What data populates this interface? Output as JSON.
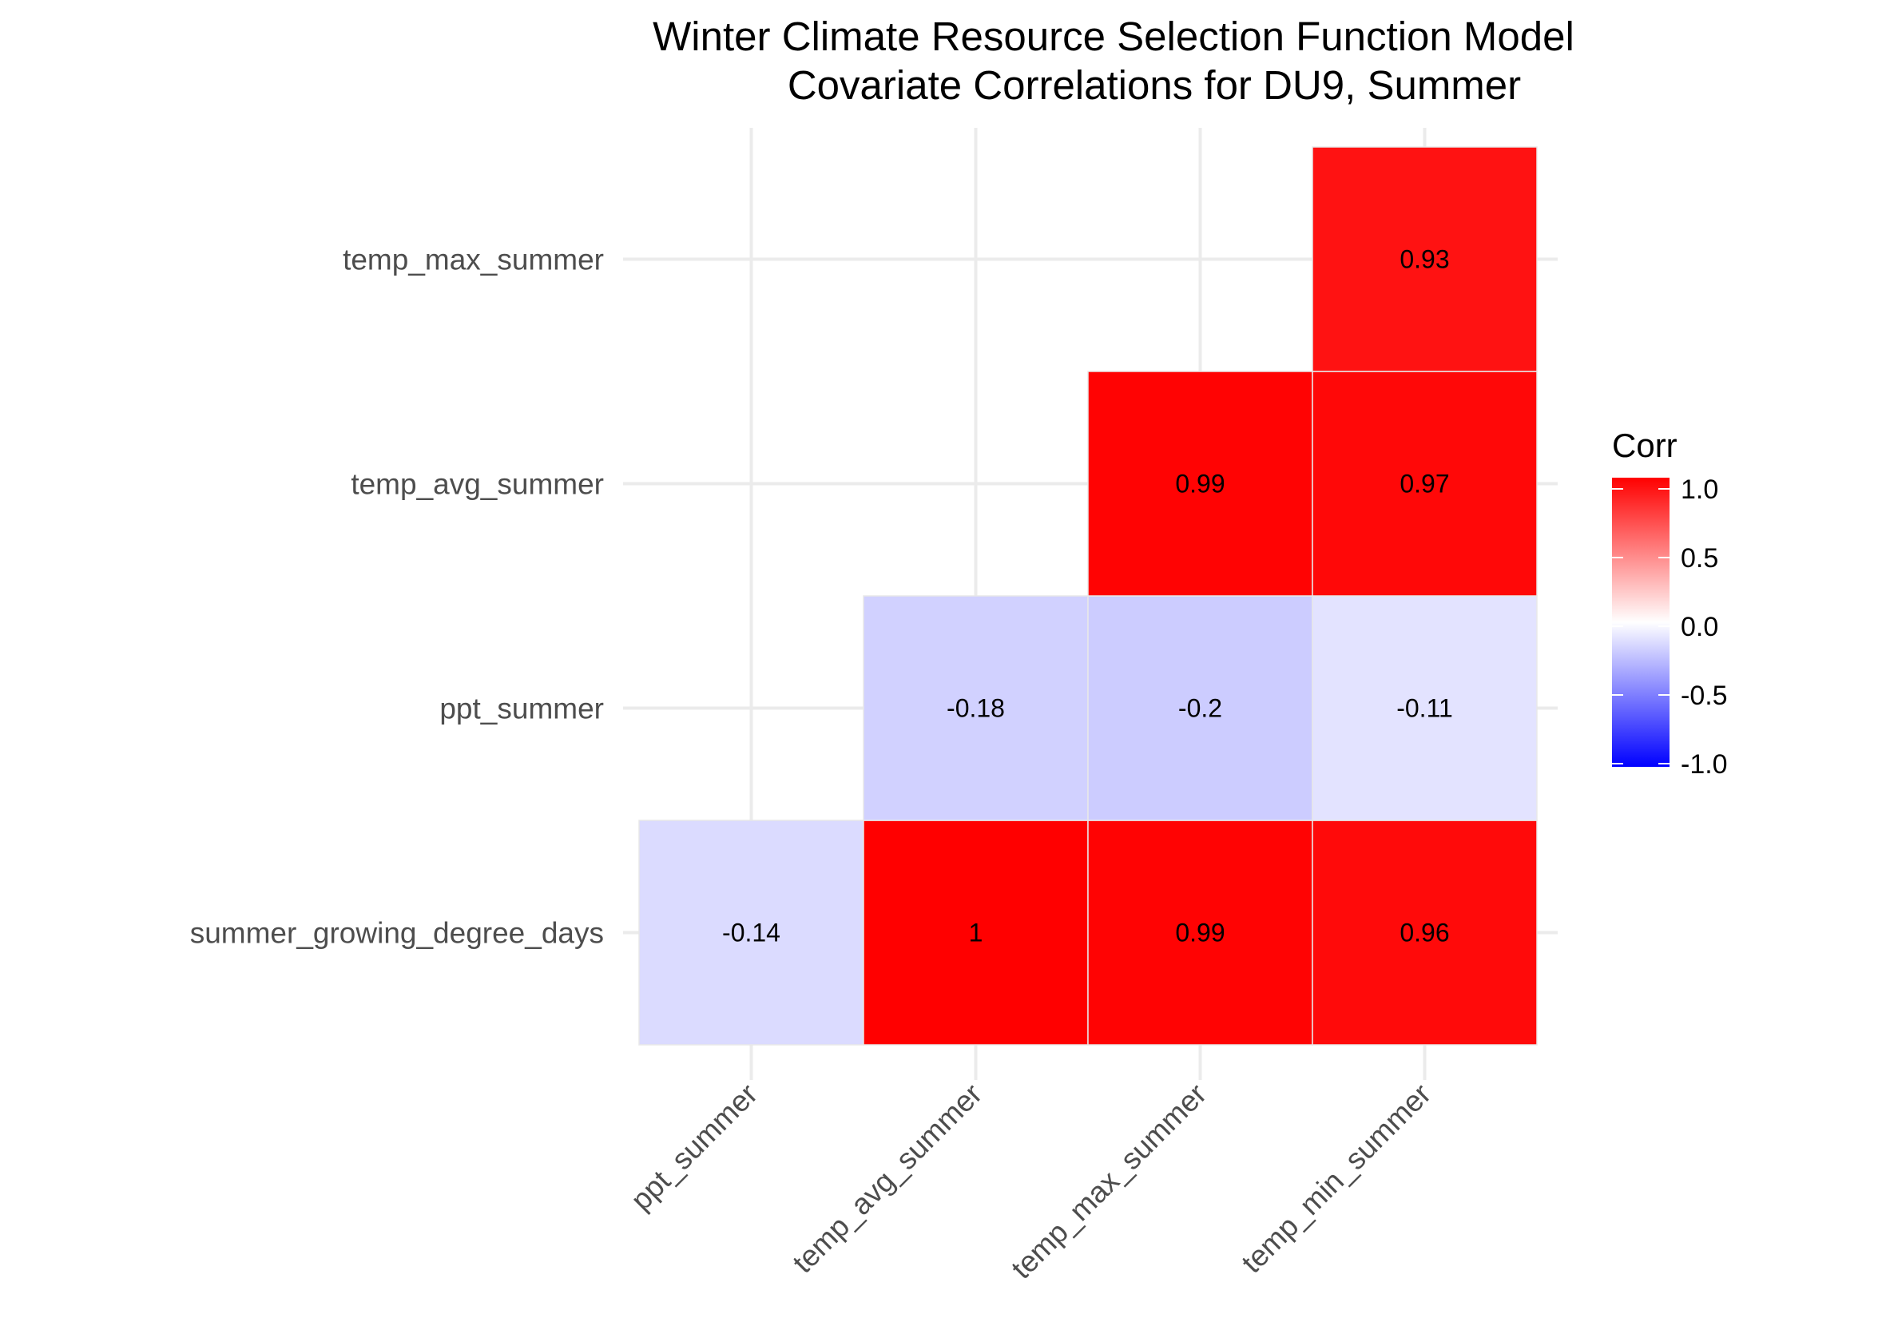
{
  "chart_data": {
    "type": "heatmap",
    "title": "Winter Climate Resource Selection Function Model",
    "subtitle": "Covariate Correlations for DU9, Summer",
    "x_categories": [
      "ppt_summer",
      "temp_avg_summer",
      "temp_max_summer",
      "temp_min_summer"
    ],
    "y_categories": [
      "summer_growing_degree_days",
      "ppt_summer",
      "temp_avg_summer",
      "temp_max_summer"
    ],
    "cells": [
      {
        "x": "ppt_summer",
        "y": "summer_growing_degree_days",
        "value": -0.14,
        "label": "-0.14"
      },
      {
        "x": "temp_avg_summer",
        "y": "summer_growing_degree_days",
        "value": 1.0,
        "label": "1"
      },
      {
        "x": "temp_max_summer",
        "y": "summer_growing_degree_days",
        "value": 0.99,
        "label": "0.99"
      },
      {
        "x": "temp_min_summer",
        "y": "summer_growing_degree_days",
        "value": 0.96,
        "label": "0.96"
      },
      {
        "x": "temp_avg_summer",
        "y": "ppt_summer",
        "value": -0.18,
        "label": "-0.18"
      },
      {
        "x": "temp_max_summer",
        "y": "ppt_summer",
        "value": -0.2,
        "label": "-0.2"
      },
      {
        "x": "temp_min_summer",
        "y": "ppt_summer",
        "value": -0.11,
        "label": "-0.11"
      },
      {
        "x": "temp_max_summer",
        "y": "temp_avg_summer",
        "value": 0.99,
        "label": "0.99"
      },
      {
        "x": "temp_min_summer",
        "y": "temp_avg_summer",
        "value": 0.97,
        "label": "0.97"
      },
      {
        "x": "temp_min_summer",
        "y": "temp_max_summer",
        "value": 0.93,
        "label": "0.93"
      }
    ],
    "legend": {
      "title": "Corr",
      "ticks": [
        1.0,
        0.5,
        0.0,
        -0.5,
        -1.0
      ],
      "tick_labels": [
        "1.0",
        "0.5",
        "0.0",
        "-0.5",
        "-1.0"
      ],
      "range": [
        -1,
        1
      ],
      "colors": {
        "low": "#0000ff",
        "mid": "#ffffff",
        "high": "#ff0000"
      }
    },
    "grid": true,
    "legend_position": "right"
  }
}
